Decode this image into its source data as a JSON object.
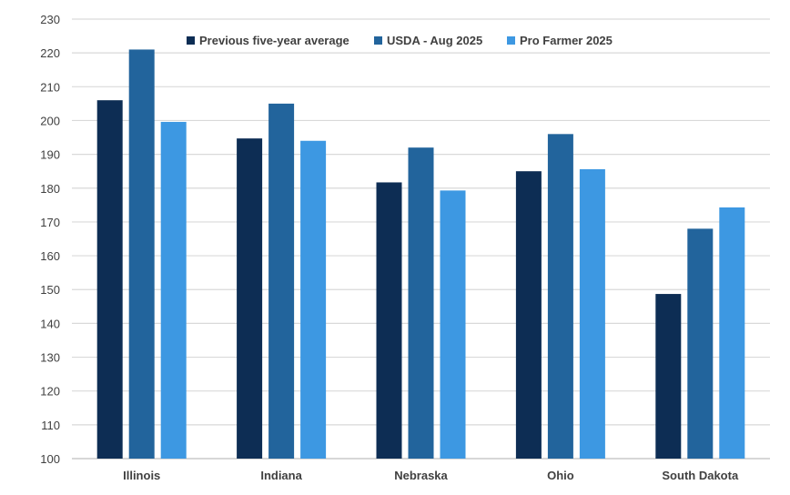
{
  "chart_data": {
    "type": "bar",
    "categories": [
      "Illinois",
      "Indiana",
      "Nebraska",
      "Ohio",
      "South Dakota"
    ],
    "series": [
      {
        "name": "Previous five-year average",
        "color": "#0d2d54",
        "values": [
          206,
          194.7,
          181.7,
          185,
          148.7
        ]
      },
      {
        "name": "USDA - Aug 2025",
        "color": "#22649c",
        "values": [
          221,
          205,
          192,
          196,
          168
        ]
      },
      {
        "name": "Pro Farmer 2025",
        "color": "#3d98e2",
        "values": [
          199.6,
          194,
          179.3,
          185.6,
          174.3
        ]
      }
    ],
    "ylim": [
      100,
      230
    ],
    "yticks": [
      100,
      110,
      120,
      130,
      140,
      150,
      160,
      170,
      180,
      190,
      200,
      210,
      220,
      230
    ],
    "grid": true,
    "legend_position": "top"
  }
}
